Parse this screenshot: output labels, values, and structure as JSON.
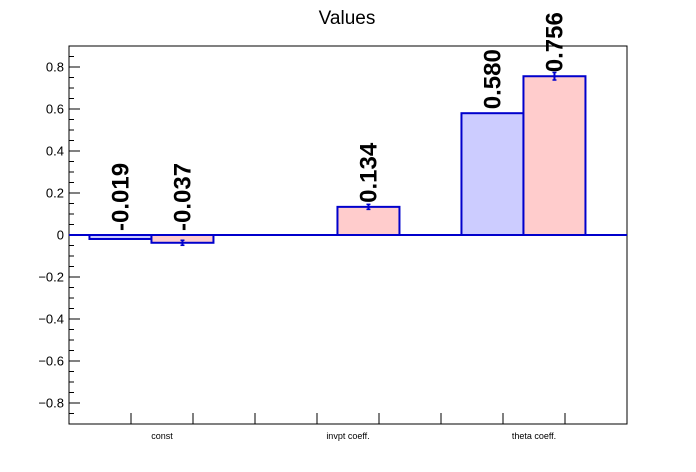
{
  "chart_data": {
    "type": "bar",
    "title": "Values",
    "categories": [
      "const",
      "invpt coeff.",
      "theta coeff."
    ],
    "series": [
      {
        "values": [
          -0.019,
          0.0,
          0.58
        ],
        "errors": [
          0.0,
          0.0,
          0.0
        ],
        "color": "#ccccff",
        "edge": "#0000cc"
      },
      {
        "values": [
          -0.037,
          0.134,
          0.756
        ],
        "errors": [
          0.012,
          0.012,
          0.018
        ],
        "color": "#ffcccc",
        "edge": "#0000cc"
      }
    ],
    "data_labels": [
      [
        "-0.019",
        "",
        "0.580"
      ],
      [
        "-0.037",
        "0.134",
        "0.756"
      ]
    ],
    "ylim": [
      -0.9,
      0.9
    ],
    "yticks": [
      -0.8,
      -0.6,
      -0.4,
      -0.2,
      0,
      0.2,
      0.4,
      0.6,
      0.8
    ],
    "ytick_labels": [
      "−0.8",
      "−0.6",
      "−0.4",
      "−0.2",
      "0",
      "0.2",
      "0.4",
      "0.6",
      "0.8"
    ],
    "xlabel": "",
    "ylabel": "",
    "grid": false,
    "legend": "none",
    "zero_line": true
  }
}
